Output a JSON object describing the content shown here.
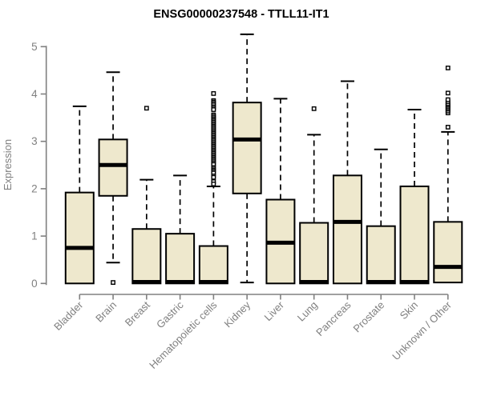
{
  "chart_data": {
    "type": "boxplot",
    "title": "ENSG00000237548 - TTLL11-IT1",
    "xlabel": "",
    "ylabel": "Expression",
    "ylim": [
      0,
      5
    ],
    "yticks": [
      0,
      1,
      2,
      3,
      4,
      5
    ],
    "grid": false,
    "legend": "none",
    "categories": [
      "Bladder",
      "Brain",
      "Breast",
      "Gastric",
      "Hematopoietic cells",
      "Kidney",
      "Liver",
      "Lung",
      "Pancreas",
      "Prostate",
      "Skin",
      "Unknown / Other"
    ],
    "series": [
      {
        "name": "Bladder",
        "whisker_low": 0.0,
        "q1": 0.0,
        "median": 0.75,
        "q3": 1.92,
        "whisker_high": 3.74,
        "outliers": []
      },
      {
        "name": "Brain",
        "whisker_low": 0.44,
        "q1": 1.85,
        "median": 2.5,
        "q3": 3.04,
        "whisker_high": 4.46,
        "outliers": [
          0.02
        ]
      },
      {
        "name": "Breast",
        "whisker_low": 0.0,
        "q1": 0.0,
        "median": 0.03,
        "q3": 1.15,
        "whisker_high": 2.19,
        "outliers": [
          3.7
        ]
      },
      {
        "name": "Gastric",
        "whisker_low": 0.0,
        "q1": 0.0,
        "median": 0.03,
        "q3": 1.05,
        "whisker_high": 2.28,
        "outliers": []
      },
      {
        "name": "Hematopoietic cells",
        "whisker_low": 0.0,
        "q1": 0.0,
        "median": 0.03,
        "q3": 0.79,
        "whisker_high": 2.05,
        "outliers": [
          4.01,
          3.86,
          3.83,
          3.8,
          3.77,
          3.73,
          3.7,
          3.67,
          3.56,
          3.53,
          3.5,
          3.47,
          3.44,
          3.41,
          3.38,
          3.35,
          3.32,
          3.29,
          3.26,
          3.23,
          3.2,
          3.17,
          3.14,
          3.11,
          3.08,
          3.05,
          3.02,
          2.99,
          2.96,
          2.93,
          2.9,
          2.87,
          2.84,
          2.81,
          2.78,
          2.75,
          2.72,
          2.69,
          2.66,
          2.63,
          2.6,
          2.57,
          2.54,
          2.51,
          2.45,
          2.42,
          2.39,
          2.36,
          2.33,
          2.27,
          2.24,
          2.15,
          2.1
        ]
      },
      {
        "name": "Kidney",
        "whisker_low": 0.02,
        "q1": 1.9,
        "median": 3.04,
        "q3": 3.82,
        "whisker_high": 5.26,
        "outliers": []
      },
      {
        "name": "Liver",
        "whisker_low": 0.0,
        "q1": 0.0,
        "median": 0.86,
        "q3": 1.77,
        "whisker_high": 3.9,
        "outliers": []
      },
      {
        "name": "Lung",
        "whisker_low": 0.0,
        "q1": 0.0,
        "median": 0.03,
        "q3": 1.28,
        "whisker_high": 3.14,
        "outliers": [
          3.69
        ]
      },
      {
        "name": "Pancreas",
        "whisker_low": 0.0,
        "q1": 0.0,
        "median": 1.3,
        "q3": 2.28,
        "whisker_high": 4.27,
        "outliers": []
      },
      {
        "name": "Prostate",
        "whisker_low": 0.0,
        "q1": 0.0,
        "median": 0.03,
        "q3": 1.21,
        "whisker_high": 2.83,
        "outliers": []
      },
      {
        "name": "Skin",
        "whisker_low": 0.0,
        "q1": 0.0,
        "median": 0.03,
        "q3": 2.05,
        "whisker_high": 3.67,
        "outliers": []
      },
      {
        "name": "Unknown / Other",
        "whisker_low": 0.0,
        "q1": 0.02,
        "median": 0.35,
        "q3": 1.3,
        "whisker_high": 3.2,
        "outliers": [
          3.3,
          3.6,
          3.64,
          3.68,
          3.71,
          3.74,
          3.77,
          3.8,
          3.84,
          3.88,
          4.02,
          4.55
        ]
      }
    ],
    "colors": {
      "box_fill": "#EEE8CD",
      "box_border": "#000000",
      "median": "#000000",
      "whisker": "#000000",
      "outlier_stroke": "#000000",
      "outlier_fill": "#ffffff",
      "axis": "#808080",
      "tick_label": "#808080",
      "title": "#000000",
      "background": "#ffffff"
    }
  }
}
